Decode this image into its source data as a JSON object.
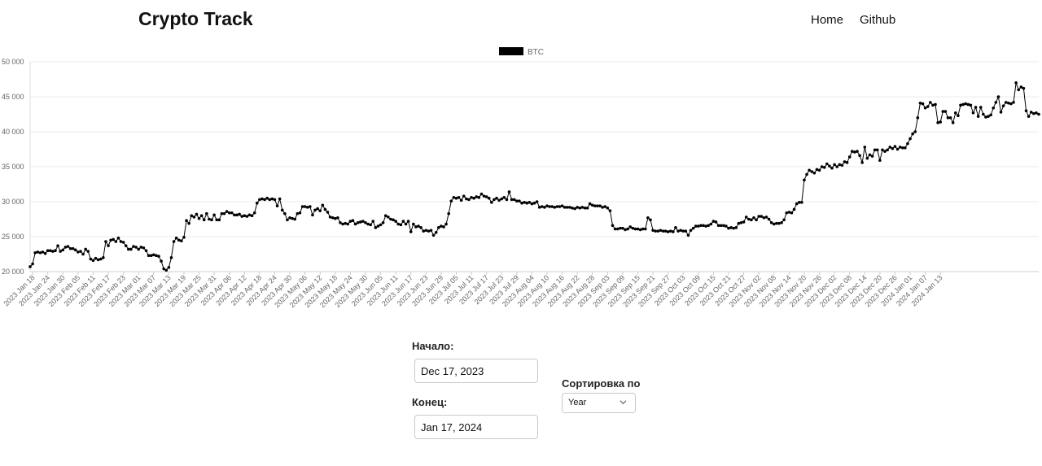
{
  "header": {
    "brand": "Crypto Track",
    "nav": [
      {
        "label": "Home"
      },
      {
        "label": "Github"
      }
    ]
  },
  "chart_data": {
    "type": "line",
    "legend": {
      "placement": "top-center",
      "entries": [
        {
          "name": "BTC",
          "color": "#000000"
        }
      ]
    },
    "grid": true,
    "ylim": [
      20000,
      50000
    ],
    "y_ticks": [
      "20 000",
      "25 000",
      "30 000",
      "35 000",
      "40 000",
      "45 000",
      "50 000"
    ],
    "x_ticks": [
      "2023 Jan 18",
      "2023 Jan 24",
      "2023 Jan 30",
      "2023 Feb 05",
      "2023 Feb 11",
      "2023 Feb 17",
      "2023 Feb 23",
      "2023 Mar 01",
      "2023 Mar 07",
      "2023 Mar 13",
      "2023 Mar 19",
      "2023 Mar 25",
      "2023 Mar 31",
      "2023 Apr 06",
      "2023 Apr 12",
      "2023 Apr 18",
      "2023 Apr 24",
      "2023 Apr 30",
      "2023 May 06",
      "2023 May 12",
      "2023 May 18",
      "2023 May 24",
      "2023 May 30",
      "2023 Jun 05",
      "2023 Jun 11",
      "2023 Jun 17",
      "2023 Jun 23",
      "2023 Jun 29",
      "2023 Jul 05",
      "2023 Jul 11",
      "2023 Jul 17",
      "2023 Jul 23",
      "2023 Jul 29",
      "2023 Aug 04",
      "2023 Aug 10",
      "2023 Aug 16",
      "2023 Aug 22",
      "2023 Aug 28",
      "2023 Sep 03",
      "2023 Sep 09",
      "2023 Sep 15",
      "2023 Sep 21",
      "2023 Sep 27",
      "2023 Oct 03",
      "2023 Oct 09",
      "2023 Oct 15",
      "2023 Oct 21",
      "2023 Oct 27",
      "2023 Nov 02",
      "2023 Nov 08",
      "2023 Nov 14",
      "2023 Nov 20",
      "2023 Nov 26",
      "2023 Dec 02",
      "2023 Dec 08",
      "2023 Dec 14",
      "2023 Dec 20",
      "2023 Dec 26",
      "2024 Jan 01",
      "2024 Jan 07",
      "2024 Jan 13"
    ],
    "series": [
      {
        "name": "BTC",
        "start_date": "2023-01-17",
        "values": [
          20700,
          21100,
          22700,
          22800,
          22700,
          22800,
          22600,
          23000,
          23000,
          22900,
          23000,
          23700,
          22900,
          23100,
          23500,
          23600,
          23300,
          23300,
          23100,
          22800,
          22900,
          22500,
          23200,
          22900,
          21800,
          21600,
          21900,
          21700,
          21800,
          22000,
          24300,
          23700,
          24500,
          24600,
          24300,
          24800,
          24300,
          24200,
          23700,
          23200,
          23200,
          23600,
          23500,
          23200,
          23500,
          23400,
          23000,
          22300,
          22300,
          22400,
          22300,
          22200,
          21500,
          20400,
          20200,
          20600,
          22000,
          24300,
          24800,
          24500,
          24400,
          24900,
          27300,
          26900,
          28000,
          27800,
          28200,
          27600,
          28000,
          27400,
          28300,
          27500,
          27400,
          28100,
          27400,
          27400,
          28300,
          28300,
          28600,
          28400,
          28400,
          28100,
          28100,
          28200,
          27900,
          28000,
          27900,
          28100,
          28000,
          28400,
          29800,
          30300,
          30400,
          30300,
          30500,
          30300,
          30400,
          30300,
          29400,
          30400,
          28800,
          28300,
          27400,
          27700,
          27600,
          27500,
          28300,
          28400,
          29300,
          29300,
          29200,
          29300,
          28100,
          28800,
          29000,
          28700,
          29500,
          28900,
          28500,
          27800,
          27700,
          27600,
          27700,
          27000,
          26800,
          26900,
          26800,
          27200,
          27300,
          26800,
          27000,
          27100,
          27200,
          27000,
          26800,
          26700,
          27200,
          26300,
          26500,
          26700,
          27000,
          28000,
          27800,
          27500,
          27400,
          27200,
          26800,
          26700,
          27200,
          26800,
          27200,
          25700,
          26800,
          26400,
          26500,
          26300,
          25800,
          25900,
          25800,
          25900,
          25200,
          25600,
          26300,
          26500,
          26400,
          26800,
          28300,
          30100,
          30600,
          30500,
          30600,
          30200,
          30800,
          30400,
          30300,
          30600,
          30500,
          30700,
          30600,
          31100,
          30800,
          30700,
          30500,
          29900,
          30300,
          30500,
          30200,
          30400,
          30600,
          30300,
          31400,
          30300,
          30300,
          30100,
          30100,
          29800,
          29900,
          29800,
          29900,
          29700,
          29800,
          30000,
          29200,
          29300,
          29200,
          29400,
          29300,
          29300,
          29200,
          29300,
          29300,
          29400,
          29200,
          29200,
          29200,
          29100,
          29000,
          29200,
          29100,
          29200,
          29100,
          29100,
          29700,
          29500,
          29400,
          29400,
          29400,
          29200,
          29300,
          29100,
          28700,
          26600,
          26100,
          26100,
          26200,
          26200,
          26000,
          26100,
          26400,
          26200,
          26100,
          26100,
          26000,
          26100,
          26100,
          27700,
          27400,
          25900,
          25800,
          25800,
          25900,
          25800,
          25800,
          25700,
          25800,
          25700,
          26300,
          25800,
          25900,
          25800,
          25800,
          25200,
          25900,
          26200,
          26500,
          26500,
          26600,
          26600,
          26500,
          26600,
          26800,
          27200,
          27100,
          26600,
          26600,
          26600,
          26500,
          26200,
          26300,
          26200,
          26300,
          26900,
          27000,
          27100,
          27800,
          27500,
          27400,
          27700,
          27400,
          27900,
          27900,
          27700,
          27800,
          27500,
          27000,
          26800,
          26900,
          26900,
          27000,
          27400,
          28400,
          28500,
          28400,
          28900,
          29700,
          29900,
          29900,
          33100,
          33900,
          34500,
          34300,
          34100,
          34600,
          34500,
          35000,
          34900,
          35400,
          35100,
          34800,
          35300,
          35000,
          35300,
          35200,
          35700,
          35600,
          36400,
          37200,
          37100,
          37200,
          36600,
          35600,
          37800,
          36200,
          36700,
          36500,
          37400,
          37400,
          35900,
          37400,
          37200,
          37400,
          37800,
          37600,
          37900,
          37500,
          37800,
          37700,
          37700,
          38300,
          39000,
          39700,
          40000,
          42000,
          44100,
          44000,
          43400,
          43600,
          44200,
          43800,
          43900,
          41300,
          41400,
          42900,
          42900,
          42000,
          42000,
          41300,
          42700,
          42300,
          43800,
          43900,
          44000,
          43900,
          43800,
          42700,
          43500,
          42200,
          43500,
          42500,
          42100,
          42200,
          42400,
          43400,
          44200,
          45000,
          42800,
          43700,
          44200,
          44100,
          44000,
          44200,
          47000,
          46000,
          46400,
          46200,
          43000,
          42200,
          42800,
          42600,
          42700,
          42500
        ]
      }
    ]
  },
  "controls": {
    "start_label": "Начало:",
    "start_value": "Dec 17, 2023",
    "end_label": "Конец:",
    "end_value": "Jan 17, 2024",
    "sort_label": "Сортировка по",
    "sort_value": "Year"
  }
}
